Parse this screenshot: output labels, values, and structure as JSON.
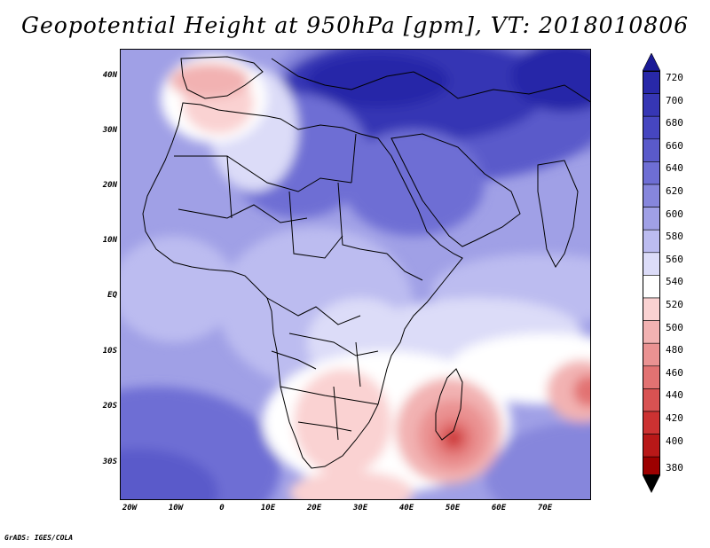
{
  "title": "Geopotential Height at 950hPa [gpm], VT: 2018010806",
  "credit": "GrADS: IGES/COLA",
  "lat_labels": [
    "40N",
    "30N",
    "20N",
    "10N",
    "EQ",
    "10S",
    "20S",
    "30S"
  ],
  "lon_labels": [
    "20W",
    "10W",
    "0",
    "10E",
    "20E",
    "30E",
    "40E",
    "50E",
    "60E",
    "70E"
  ],
  "colorbar": {
    "levels": [
      "720",
      "700",
      "680",
      "660",
      "640",
      "620",
      "600",
      "580",
      "560",
      "540",
      "520",
      "500",
      "480",
      "460",
      "440",
      "420",
      "400",
      "380"
    ],
    "colors": [
      "#1a1a96",
      "#2828a8",
      "#3636b4",
      "#4646c0",
      "#5a5aca",
      "#6e6ed4",
      "#8686dc",
      "#a0a0e6",
      "#bcbcf0",
      "#dcdcf8",
      "#ffffff",
      "#fad2d2",
      "#f2b2b2",
      "#ea9292",
      "#e27272",
      "#d85252",
      "#cc3232",
      "#b81818",
      "#9c0000"
    ]
  }
}
